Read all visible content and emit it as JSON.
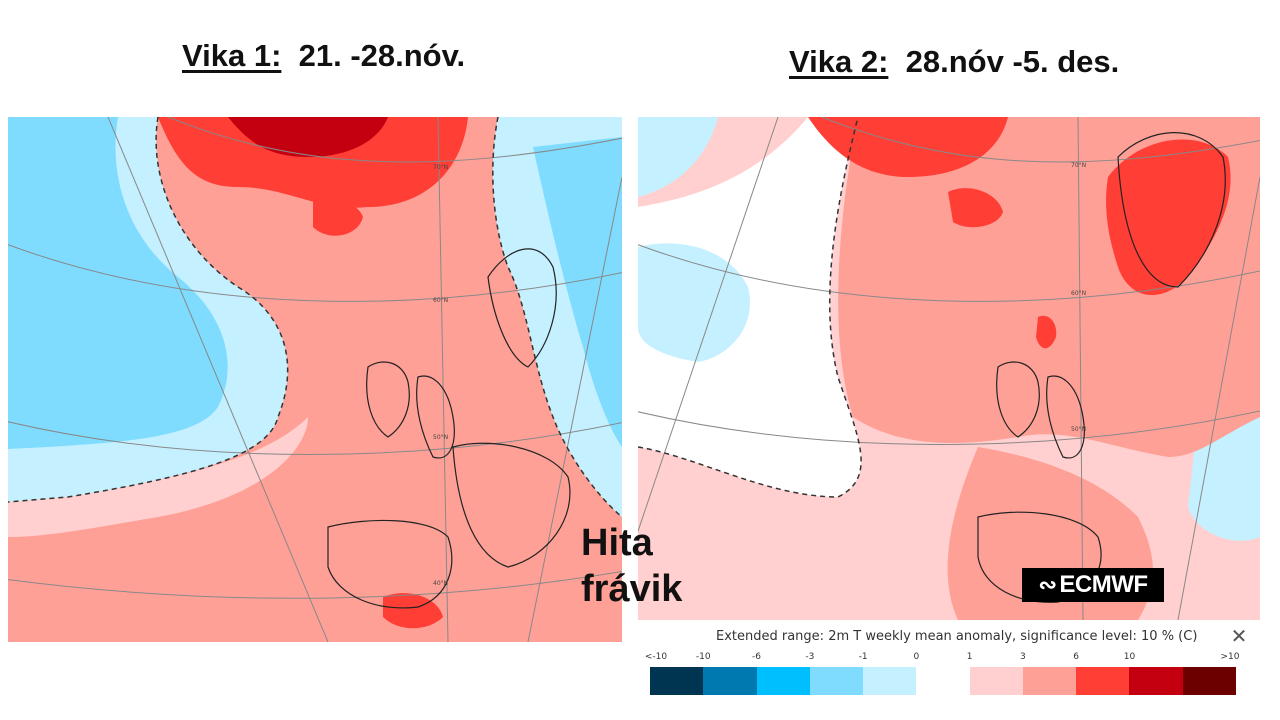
{
  "weeks": [
    {
      "label": "Vika 1:",
      "dates": "21. -28.nóv."
    },
    {
      "label": "Vika 2:",
      "dates": "28.nóv -5. des."
    }
  ],
  "annotation": {
    "line1": "Hita",
    "line2": "frávik"
  },
  "brand": {
    "logo_text": "ECMWF"
  },
  "map_labels": {
    "map1": [
      "70°N",
      "60°N",
      "50°N",
      "40°N"
    ],
    "map2": [
      "70°N",
      "60°N",
      "50°N"
    ]
  },
  "legend": {
    "title": "Extended range: 2m T weekly mean anomaly, significance level: 10 % (C)",
    "close_icon": "close-icon",
    "ticks": [
      "<-10",
      "-10",
      "-6",
      "-3",
      "-1",
      "0",
      "1",
      "3",
      "6",
      "10",
      ">10"
    ],
    "colors": [
      "#003551",
      "#0079b0",
      "#00bfff",
      "#7fdcff",
      "#c5f0ff",
      "#ffffff",
      "#ffd0cf",
      "#ffa097",
      "#ff3e36",
      "#c40010",
      "#6c0000"
    ]
  },
  "colors": {
    "cold_light": "#c5f0ff",
    "cold_mid": "#7fdcff",
    "warm_light": "#ffd0cf",
    "warm_mid": "#ffa097",
    "warm_strong": "#ff3e36",
    "warm_dark": "#c40010"
  }
}
